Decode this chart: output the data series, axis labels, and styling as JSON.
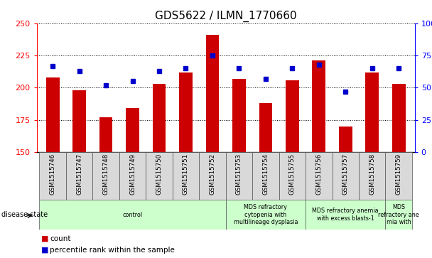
{
  "title": "GDS5622 / ILMN_1770660",
  "categories": [
    "GSM1515746",
    "GSM1515747",
    "GSM1515748",
    "GSM1515749",
    "GSM1515750",
    "GSM1515751",
    "GSM1515752",
    "GSM1515753",
    "GSM1515754",
    "GSM1515755",
    "GSM1515756",
    "GSM1515757",
    "GSM1515758",
    "GSM1515759"
  ],
  "counts": [
    208,
    198,
    177,
    184,
    203,
    212,
    241,
    207,
    188,
    206,
    221,
    170,
    212,
    203
  ],
  "percentiles": [
    67,
    63,
    52,
    55,
    63,
    65,
    75,
    65,
    57,
    65,
    68,
    47,
    65,
    65
  ],
  "ylim_left": [
    150,
    250
  ],
  "ylim_right": [
    0,
    100
  ],
  "yticks_left": [
    150,
    175,
    200,
    225,
    250
  ],
  "yticks_right": [
    0,
    25,
    50,
    75,
    100
  ],
  "bar_color": "#cc0000",
  "dot_color": "#0000cc",
  "background_color": "#ffffff",
  "disease_groups": [
    {
      "label": "control",
      "start": 0,
      "end": 6
    },
    {
      "label": "MDS refractory\ncytopenia with\nmultilineage dysplasia",
      "start": 7,
      "end": 9
    },
    {
      "label": "MDS refractory anemia\nwith excess blasts-1",
      "start": 10,
      "end": 12
    },
    {
      "label": "MDS\nrefractory ane\nmia with",
      "start": 13,
      "end": 13
    }
  ],
  "title_fontsize": 11,
  "tick_fontsize": 7,
  "bar_width": 0.5,
  "legend_count_label": "count",
  "legend_pct_label": "percentile rank within the sample",
  "disease_state_label": "disease state"
}
